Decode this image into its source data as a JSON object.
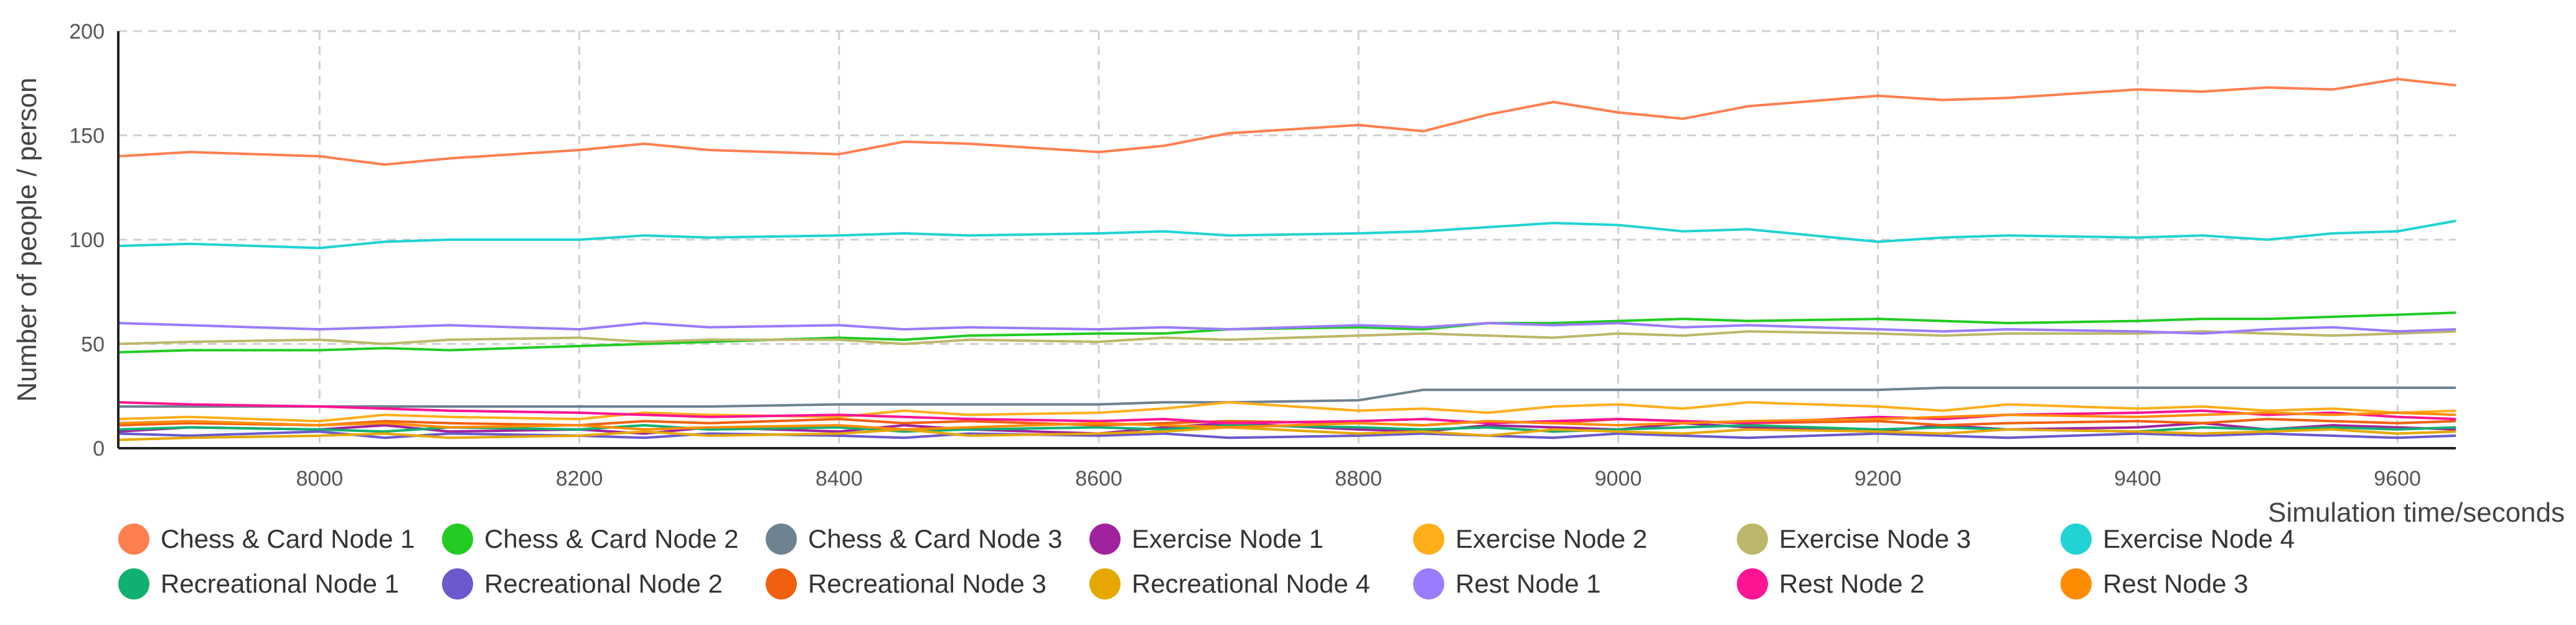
{
  "chart_data": {
    "type": "line",
    "ylabel": "Number of people / person",
    "xlabel": "Simulation time/seconds",
    "xlim": [
      7845,
      9645
    ],
    "ylim": [
      0,
      200
    ],
    "x_ticks": [
      8000,
      8200,
      8400,
      8600,
      8800,
      9000,
      9200,
      9400,
      9600
    ],
    "y_ticks": [
      0,
      50,
      100,
      150,
      200
    ],
    "grid": true,
    "legend_position": "bottom",
    "x": [
      7845,
      7900,
      8000,
      8050,
      8100,
      8200,
      8250,
      8300,
      8400,
      8450,
      8500,
      8600,
      8650,
      8700,
      8800,
      8850,
      8900,
      8950,
      9000,
      9050,
      9100,
      9200,
      9250,
      9300,
      9400,
      9450,
      9500,
      9550,
      9600,
      9645
    ],
    "series": [
      {
        "name": "Chess & Card Node 1",
        "color": "#ff7f50",
        "values": [
          140,
          142,
          140,
          136,
          139,
          143,
          146,
          143,
          141,
          147,
          146,
          142,
          145,
          151,
          155,
          152,
          160,
          166,
          161,
          158,
          164,
          169,
          167,
          168,
          172,
          171,
          173,
          172,
          177,
          174
        ]
      },
      {
        "name": "Chess & Card Node 2",
        "color": "#22cc22",
        "values": [
          46,
          47,
          47,
          48,
          47,
          49,
          50,
          51,
          53,
          52,
          54,
          55,
          55,
          57,
          58,
          57,
          60,
          60,
          61,
          62,
          61,
          62,
          61,
          60,
          61,
          62,
          62,
          63,
          64,
          65
        ]
      },
      {
        "name": "Chess & Card Node 3",
        "color": "#6e8290",
        "values": [
          20,
          20,
          20,
          20,
          20,
          20,
          20,
          20,
          21,
          21,
          21,
          21,
          22,
          22,
          23,
          28,
          28,
          28,
          28,
          28,
          28,
          28,
          29,
          29,
          29,
          29,
          29,
          29,
          29,
          29
        ]
      },
      {
        "name": "Exercise Node 1",
        "color": "#a0229c",
        "values": [
          8,
          10,
          9,
          11,
          8,
          9,
          7,
          10,
          8,
          11,
          9,
          7,
          10,
          12,
          9,
          8,
          11,
          10,
          9,
          12,
          10,
          8,
          11,
          9,
          10,
          12,
          9,
          11,
          10,
          9
        ]
      },
      {
        "name": "Exercise Node 2",
        "color": "#ffae1a",
        "values": [
          14,
          15,
          13,
          16,
          15,
          14,
          17,
          16,
          15,
          18,
          16,
          17,
          19,
          22,
          18,
          19,
          17,
          20,
          21,
          19,
          22,
          20,
          18,
          21,
          19,
          20,
          18,
          19,
          17,
          18
        ]
      },
      {
        "name": "Exercise Node 3",
        "color": "#bdb76b",
        "values": [
          50,
          51,
          52,
          50,
          52,
          53,
          51,
          52,
          52,
          50,
          52,
          51,
          53,
          52,
          54,
          55,
          54,
          53,
          55,
          54,
          56,
          55,
          54,
          55,
          55,
          56,
          55,
          54,
          55,
          56
        ]
      },
      {
        "name": "Exercise Node 4",
        "color": "#22d3d3",
        "values": [
          97,
          98,
          96,
          99,
          100,
          100,
          102,
          101,
          102,
          103,
          102,
          103,
          104,
          102,
          103,
          104,
          106,
          108,
          107,
          104,
          105,
          99,
          101,
          102,
          101,
          102,
          100,
          103,
          104,
          109
        ]
      },
      {
        "name": "Recreational Node 1",
        "color": "#10b070",
        "values": [
          9,
          10,
          9,
          8,
          10,
          9,
          11,
          9,
          10,
          8,
          9,
          10,
          9,
          11,
          10,
          9,
          10,
          8,
          9,
          10,
          11,
          9,
          10,
          9,
          8,
          10,
          9,
          10,
          9,
          10
        ]
      },
      {
        "name": "Recreational Node 2",
        "color": "#6a5acd",
        "values": [
          7,
          6,
          8,
          5,
          7,
          6,
          5,
          7,
          6,
          5,
          7,
          6,
          7,
          5,
          6,
          7,
          6,
          5,
          7,
          6,
          5,
          7,
          6,
          5,
          7,
          6,
          7,
          6,
          5,
          6
        ]
      },
      {
        "name": "Recreational Node 3",
        "color": "#f06010",
        "values": [
          11,
          12,
          11,
          13,
          12,
          11,
          13,
          12,
          14,
          12,
          13,
          11,
          12,
          13,
          12,
          11,
          13,
          12,
          14,
          13,
          12,
          13,
          11,
          12,
          13,
          12,
          14,
          13,
          12,
          13
        ]
      },
      {
        "name": "Recreational Node 4",
        "color": "#e6a800",
        "values": [
          4,
          5,
          6,
          7,
          5,
          6,
          8,
          6,
          7,
          9,
          6,
          7,
          8,
          10,
          7,
          8,
          6,
          9,
          8,
          7,
          9,
          8,
          7,
          9,
          8,
          7,
          8,
          9,
          7,
          8
        ]
      },
      {
        "name": "Rest Node 1",
        "color": "#9a7cff",
        "values": [
          60,
          59,
          57,
          58,
          59,
          57,
          60,
          58,
          59,
          57,
          58,
          57,
          58,
          57,
          59,
          58,
          60,
          59,
          60,
          58,
          59,
          57,
          56,
          57,
          56,
          55,
          57,
          58,
          56,
          57
        ]
      },
      {
        "name": "Rest Node 2",
        "color": "#ff1493",
        "values": [
          22,
          21,
          20,
          19,
          18,
          17,
          16,
          15,
          16,
          15,
          14,
          13,
          14,
          12,
          13,
          14,
          12,
          13,
          14,
          13,
          12,
          15,
          14,
          16,
          17,
          18,
          16,
          17,
          15,
          14
        ]
      },
      {
        "name": "Rest Node 3",
        "color": "#ff8c00",
        "values": [
          12,
          13,
          11,
          12,
          10,
          11,
          9,
          10,
          11,
          9,
          10,
          12,
          11,
          10,
          12,
          11,
          13,
          12,
          11,
          12,
          13,
          14,
          15,
          16,
          15,
          16,
          17,
          16,
          17,
          16
        ]
      }
    ]
  }
}
